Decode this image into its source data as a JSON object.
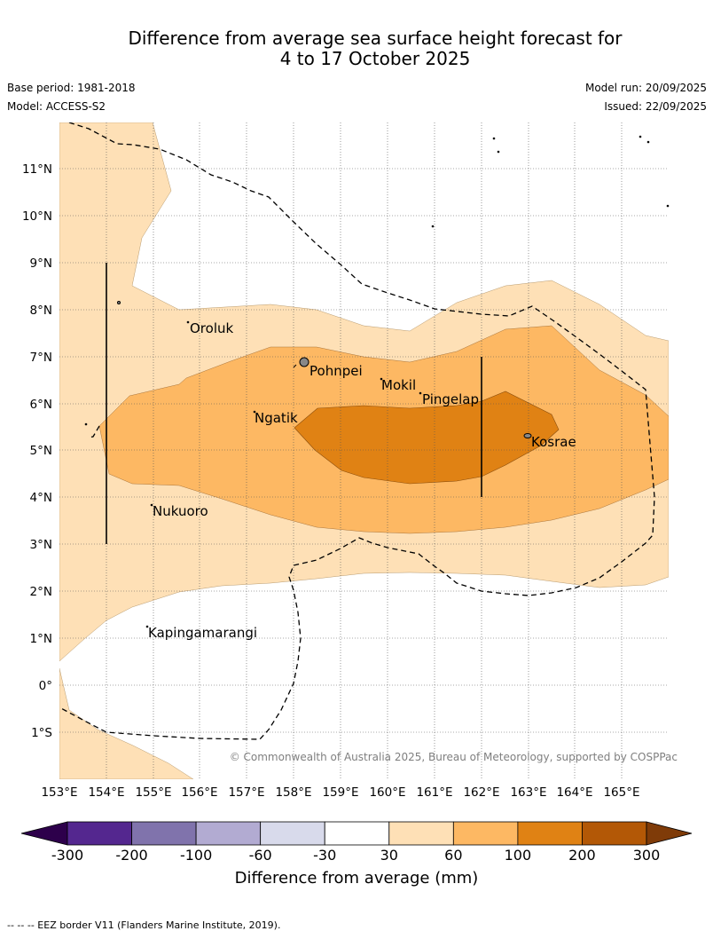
{
  "title": {
    "line1": "Difference from average sea surface height forecast for",
    "line2": "4 to 17 October 2025"
  },
  "meta": {
    "base_period": "Base period: 1981-2018",
    "model": "Model: ACCESS-S2",
    "model_run": "Model run: 20/09/2025",
    "issued": "Issued: 22/09/2025"
  },
  "map": {
    "lat_labels": [
      "11°N",
      "10°N",
      "9°N",
      "8°N",
      "7°N",
      "6°N",
      "5°N",
      "4°N",
      "3°N",
      "2°N",
      "1°N",
      "0°",
      "1°S"
    ],
    "lon_labels": [
      "153°E",
      "154°E",
      "155°E",
      "156°E",
      "157°E",
      "158°E",
      "159°E",
      "160°E",
      "161°E",
      "162°E",
      "163°E",
      "164°E",
      "165°E"
    ],
    "places": {
      "oroluk": "Oroluk",
      "pohnpei": "Pohnpei",
      "mokil": "Mokil",
      "pingelap": "Pingelap",
      "ngatik": "Ngatik",
      "kosrae": "Kosrae",
      "nukuoro": "Nukuoro",
      "kapingamarangi": "Kapingamarangi"
    },
    "copyright": "© Commonwealth of Australia 2025, Bureau of Meteorology, supported by COSPPac"
  },
  "colorbar": {
    "title": "Difference from average (mm)",
    "labels": [
      "-300",
      "-200",
      "-100",
      "-60",
      "-30",
      "30",
      "60",
      "100",
      "200",
      "300"
    ],
    "colors": [
      "#54278f",
      "#8073ac",
      "#b2abd2",
      "#d8daeb",
      "#ffffff",
      "#fee0b6",
      "#fdb863",
      "#e08214",
      "#b35806"
    ],
    "under_color": "#2d004b",
    "over_color": "#7f3b08"
  },
  "footer": "--  --  -- EEZ border V11 (Flanders Marine Institute, 2019)."
}
